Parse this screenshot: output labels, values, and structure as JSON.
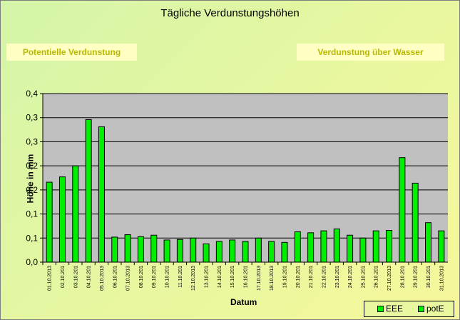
{
  "chart_data": {
    "type": "bar",
    "title": "Tägliche Verdunstungshöhen",
    "ylabel": "Höhe in mm",
    "xlabel": "Datum",
    "y_tick_labels": [
      "0,0",
      "0,1",
      "0,1",
      "0,2",
      "0,2",
      "0,3",
      "0,3",
      "0,4"
    ],
    "ylim": [
      0,
      0.35
    ],
    "grid": true,
    "categories": [
      "01.10.2013",
      "02.10.201",
      "03.10.201",
      "04.10.201",
      "05.10.2013",
      "06.10.201",
      "07.10.2013",
      "08.10.201",
      "09.10.201",
      "10.10.201",
      "11.10.201",
      "12.10.2013",
      "13.10.201",
      "14.10.201",
      "15.10.201",
      "16.10.201",
      "17.10.2013",
      "18.10.2013",
      "19.10.201",
      "20.10.201",
      "21.10.201",
      "22.10.201",
      "23.10.201",
      "24.10.201",
      "25.10.201",
      "26.10.201",
      "27.10.2013",
      "28.10.201",
      "29.10.201",
      "30.10.201",
      "31.10.2013"
    ],
    "series": [
      {
        "name": "potE",
        "color": "#00ee00",
        "values": [
          0.166,
          0.177,
          0.2,
          0.296,
          0.281,
          0.052,
          0.057,
          0.053,
          0.056,
          0.046,
          0.047,
          0.05,
          0.038,
          0.043,
          0.046,
          0.043,
          0.05,
          0.043,
          0.041,
          0.063,
          0.061,
          0.065,
          0.069,
          0.056,
          0.05,
          0.065,
          0.066,
          0.217,
          0.164,
          0.082,
          0.065
        ]
      }
    ],
    "legend": {
      "position": "bottom-right",
      "entries": [
        "EEE",
        "potE"
      ]
    }
  },
  "buttons": {
    "potentielle": "Potentielle Verdunstung",
    "wasser": "Verdunstung über Wasser"
  }
}
